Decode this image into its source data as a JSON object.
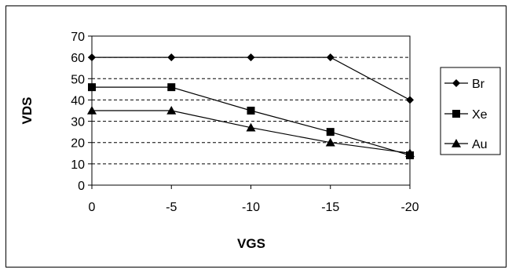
{
  "chart_data": {
    "type": "line",
    "x": [
      "0",
      "-5",
      "-10",
      "-15",
      "-20"
    ],
    "xlabel": "VGS",
    "ylabel": "VDS",
    "ylim": [
      0,
      70
    ],
    "yticks": [
      "0",
      "10",
      "20",
      "30",
      "40",
      "50",
      "60",
      "70"
    ],
    "grid": "horizontal dashed",
    "legend": "right",
    "series": [
      {
        "name": "Br",
        "marker": "diamond",
        "values": [
          60,
          60,
          60,
          60,
          40
        ]
      },
      {
        "name": "Xe",
        "marker": "square",
        "values": [
          46,
          46,
          35,
          25,
          14
        ]
      },
      {
        "name": "Au",
        "marker": "triangle",
        "values": [
          35,
          35,
          27,
          20,
          15
        ]
      }
    ]
  }
}
